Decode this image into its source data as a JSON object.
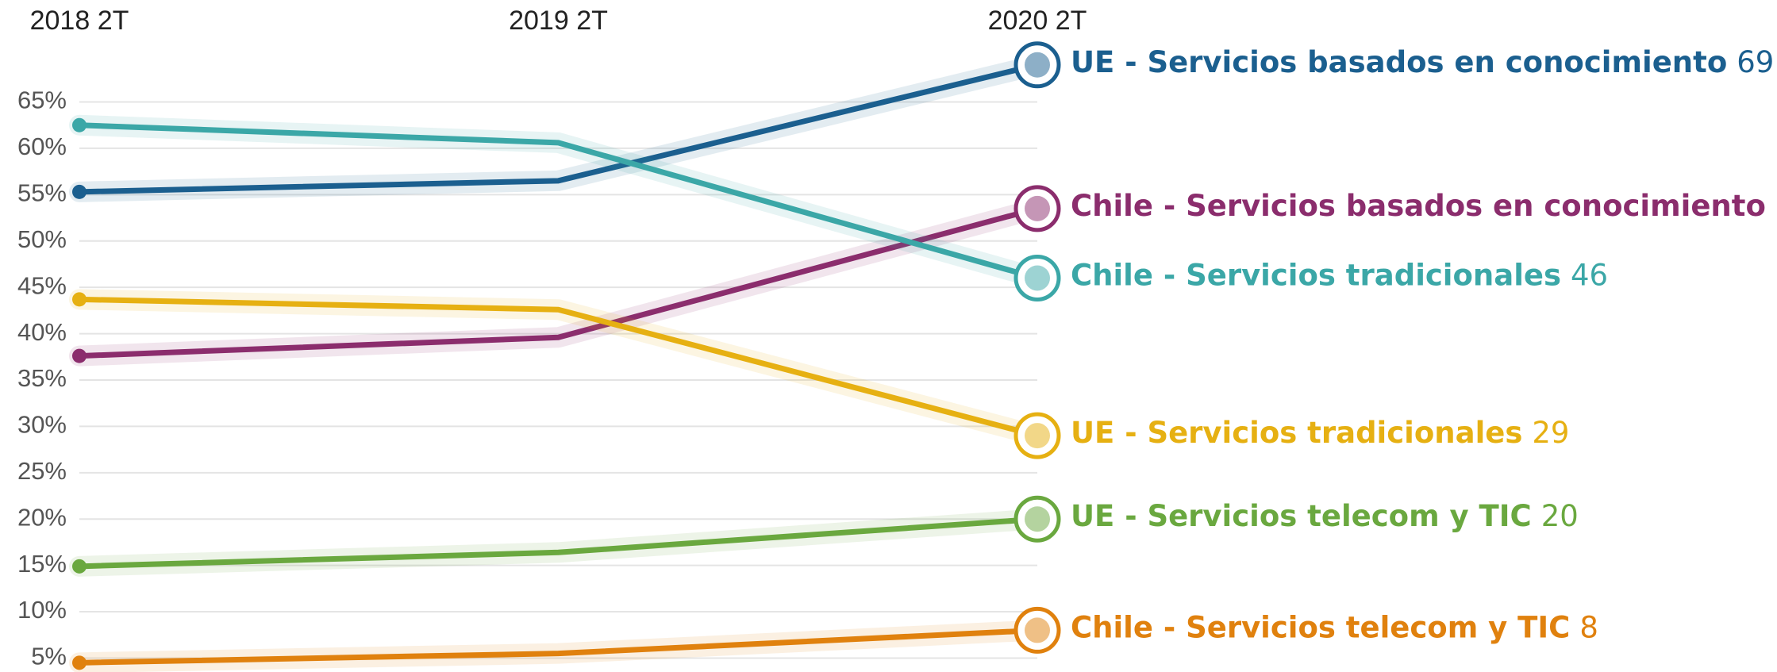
{
  "chart_data": {
    "type": "line",
    "categories": [
      "2018 2T",
      "2019 2T",
      "2020 2T"
    ],
    "ylim": [
      3.5,
      76
    ],
    "yticks": [
      {
        "value": 5,
        "label": "5%"
      },
      {
        "value": 10,
        "label": "10%"
      },
      {
        "value": 15,
        "label": "15%"
      },
      {
        "value": 20,
        "label": "20%"
      },
      {
        "value": 25,
        "label": "25%"
      },
      {
        "value": 30,
        "label": "30%"
      },
      {
        "value": 35,
        "label": "35%"
      },
      {
        "value": 40,
        "label": "40%"
      },
      {
        "value": 45,
        "label": "45%"
      },
      {
        "value": 50,
        "label": "50%"
      },
      {
        "value": 55,
        "label": "55%"
      },
      {
        "value": 60,
        "label": "60%"
      },
      {
        "value": 65,
        "label": "65%"
      }
    ],
    "grid": true,
    "series": [
      {
        "name": "UE - Servicios basados en conocimiento",
        "color": "#1b5f8f",
        "values": [
          55.3,
          56.5,
          69
        ],
        "end_label": true
      },
      {
        "name": "Chile - Servicios basados en conocimiento",
        "color": "#8b2d6d",
        "values": [
          37.6,
          39.6,
          53.5
        ],
        "end_label": false
      },
      {
        "name": "Chile - Servicios tradicionales",
        "color": "#3ba7a7",
        "values": [
          62.5,
          60.6,
          46
        ],
        "end_label": true
      },
      {
        "name": "UE - Servicios tradicionales",
        "color": "#e6b012",
        "values": [
          43.7,
          42.6,
          29
        ],
        "end_label": true
      },
      {
        "name": "UE - Servicios telecom y TIC",
        "color": "#6aa83f",
        "values": [
          14.9,
          16.4,
          20
        ],
        "end_label": true
      },
      {
        "name": "Chile - Servicios telecom y TIC",
        "color": "#e0810e",
        "values": [
          4.5,
          5.5,
          8
        ],
        "end_label": true
      }
    ]
  }
}
